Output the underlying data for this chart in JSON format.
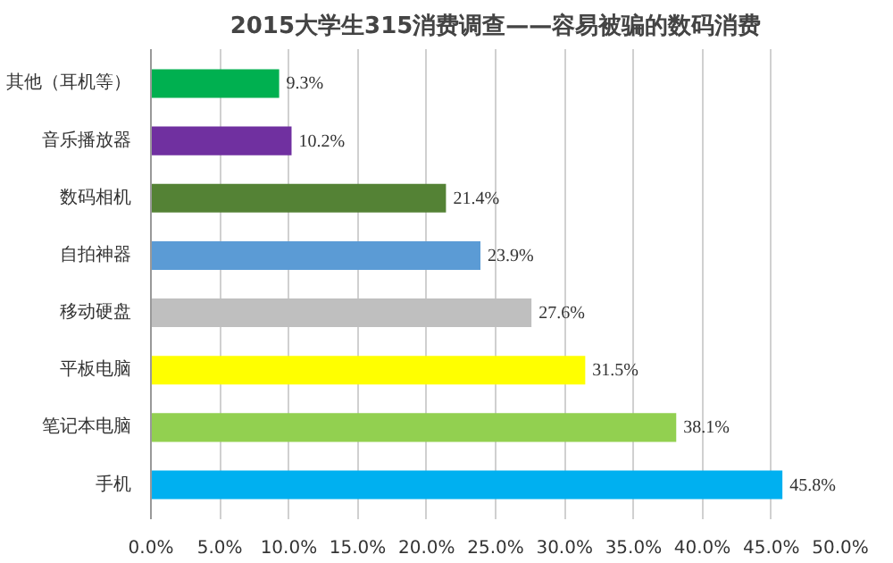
{
  "chart_data": {
    "type": "bar",
    "orientation": "horizontal",
    "title": "2015大学生315消费调查——容易被骗的数码消费",
    "categories": [
      "其他（耳机等）",
      "音乐播放器",
      "数码相机",
      "自拍神器",
      "移动硬盘",
      "平板电脑",
      "笔记本电脑",
      "手机"
    ],
    "values": [
      9.3,
      10.2,
      21.4,
      23.9,
      27.6,
      31.5,
      38.1,
      45.8
    ],
    "colors": [
      "#00b050",
      "#7030a0",
      "#548235",
      "#5b9bd5",
      "#bfbfbf",
      "#ffff00",
      "#92d050",
      "#00b0f0"
    ],
    "value_labels": [
      "9.3%",
      "10.2%",
      "21.4%",
      "23.9%",
      "27.6%",
      "31.5%",
      "38.1%",
      "45.8%"
    ],
    "xlim": [
      0,
      50
    ],
    "xticks": [
      {
        "value": 0,
        "label": "0.0%"
      },
      {
        "value": 5,
        "label": "5.0%"
      },
      {
        "value": 10,
        "label": "10.0%"
      },
      {
        "value": 15,
        "label": "15.0%"
      },
      {
        "value": 20,
        "label": "20.0%"
      },
      {
        "value": 25,
        "label": "25.0%"
      },
      {
        "value": 30,
        "label": "30.0%"
      },
      {
        "value": 35,
        "label": "35.0%"
      },
      {
        "value": 40,
        "label": "40.0%"
      },
      {
        "value": 45,
        "label": "45.0%"
      },
      {
        "value": 50,
        "label": "50.0%"
      }
    ],
    "grid": "x"
  }
}
